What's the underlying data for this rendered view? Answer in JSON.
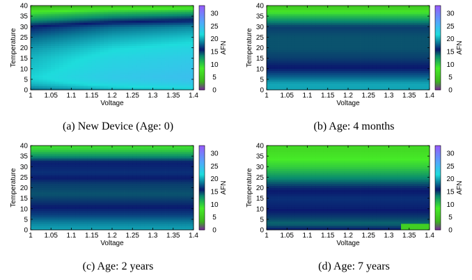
{
  "chart_data": [
    {
      "type": "heatmap",
      "caption": "(a) New Device (Age: 0)",
      "xlabel": "Voltage",
      "ylabel": "Temperature",
      "colorbar_label": "AFN",
      "xlim": [
        1,
        1.4
      ],
      "ylim": [
        0,
        40
      ],
      "clim": [
        0,
        33
      ],
      "x_ticks": [
        "1",
        "1.05",
        "1.1",
        "1.15",
        "1.2",
        "1.25",
        "1.3",
        "1.35",
        "1.4"
      ],
      "y_ticks": [
        "0",
        "5",
        "10",
        "15",
        "20",
        "25",
        "30",
        "35",
        "40"
      ],
      "colorbar_ticks": [
        "0",
        "5",
        "10",
        "15",
        "20",
        "25",
        "30"
      ],
      "temperature_profile": [
        [
          0,
          20
        ],
        [
          2,
          22
        ],
        [
          4,
          23
        ],
        [
          6,
          23.5
        ],
        [
          10,
          23
        ],
        [
          15,
          22.5
        ],
        [
          20,
          21.5
        ],
        [
          25,
          20
        ],
        [
          30,
          18
        ],
        [
          33,
          15
        ],
        [
          36,
          12
        ],
        [
          38,
          9
        ],
        [
          40,
          5
        ]
      ],
      "voltage_trend": [
        [
          1.0,
          -2
        ],
        [
          1.2,
          0
        ],
        [
          1.4,
          1
        ]
      ]
    },
    {
      "type": "heatmap",
      "caption": "(b) Age: 4 months",
      "xlabel": "Voltage",
      "ylabel": "Temperature",
      "colorbar_label": "AFN",
      "xlim": [
        1,
        1.4
      ],
      "ylim": [
        0,
        40
      ],
      "clim": [
        0,
        33
      ],
      "x_ticks": [
        "1",
        "1.05",
        "1.1",
        "1.15",
        "1.2",
        "1.25",
        "1.3",
        "1.35",
        "1.4"
      ],
      "y_ticks": [
        "0",
        "5",
        "10",
        "15",
        "20",
        "25",
        "30",
        "35",
        "40"
      ],
      "colorbar_ticks": [
        "0",
        "5",
        "10",
        "15",
        "20",
        "25",
        "30"
      ],
      "temperature_profile": [
        [
          0,
          20
        ],
        [
          3,
          20
        ],
        [
          6,
          18
        ],
        [
          10,
          16
        ],
        [
          15,
          15
        ],
        [
          20,
          14.5
        ],
        [
          25,
          14.5
        ],
        [
          30,
          15
        ],
        [
          33,
          13
        ],
        [
          36,
          10
        ],
        [
          38,
          7
        ],
        [
          40,
          5
        ]
      ],
      "voltage_trend": [
        [
          1.0,
          0
        ],
        [
          1.4,
          0
        ]
      ]
    },
    {
      "type": "heatmap",
      "caption": "(c) Age: 2 years",
      "xlabel": "Voltage",
      "ylabel": "Temperature",
      "colorbar_label": "AFN",
      "xlim": [
        1,
        1.4
      ],
      "ylim": [
        0,
        40
      ],
      "clim": [
        0,
        33
      ],
      "x_ticks": [
        "1",
        "1.05",
        "1.1",
        "1.15",
        "1.2",
        "1.25",
        "1.3",
        "1.35",
        "1.4"
      ],
      "y_ticks": [
        "0",
        "5",
        "10",
        "15",
        "20",
        "25",
        "30",
        "35",
        "40"
      ],
      "colorbar_ticks": [
        "0",
        "5",
        "10",
        "15",
        "20",
        "25",
        "30"
      ],
      "temperature_profile": [
        [
          0,
          20
        ],
        [
          3,
          19
        ],
        [
          7,
          17
        ],
        [
          12,
          15.5
        ],
        [
          17,
          14.5
        ],
        [
          22,
          15
        ],
        [
          27,
          16.5
        ],
        [
          32,
          16
        ],
        [
          35,
          13
        ],
        [
          38,
          10
        ],
        [
          40,
          9
        ]
      ],
      "voltage_trend": [
        [
          1.0,
          0
        ],
        [
          1.4,
          0
        ]
      ]
    },
    {
      "type": "heatmap",
      "caption": "(d) Age: 7 years",
      "xlabel": "Voltage",
      "ylabel": "Temperature",
      "colorbar_label": "AFN",
      "xlim": [
        1,
        1.4
      ],
      "ylim": [
        0,
        40
      ],
      "clim": [
        0,
        33
      ],
      "x_ticks": [
        "1",
        "1.05",
        "1.1",
        "1.15",
        "1.2",
        "1.25",
        "1.3",
        "1.35",
        "1.4"
      ],
      "y_ticks": [
        "0",
        "5",
        "10",
        "15",
        "20",
        "25",
        "30",
        "35",
        "40"
      ],
      "colorbar_ticks": [
        "0",
        "5",
        "10",
        "15",
        "20",
        "25",
        "30"
      ],
      "temperature_profile": [
        [
          0,
          16
        ],
        [
          3,
          14
        ],
        [
          6,
          15
        ],
        [
          10,
          16
        ],
        [
          15,
          16.5
        ],
        [
          20,
          15.5
        ],
        [
          25,
          13
        ],
        [
          30,
          10
        ],
        [
          35,
          8
        ],
        [
          38,
          7
        ],
        [
          40,
          7
        ]
      ],
      "voltage_trend": [
        [
          1.0,
          0
        ],
        [
          1.4,
          0
        ]
      ],
      "right_edge_bump": [
        [
          36,
          40,
          10
        ],
        [
          0,
          3,
          6
        ]
      ]
    }
  ]
}
